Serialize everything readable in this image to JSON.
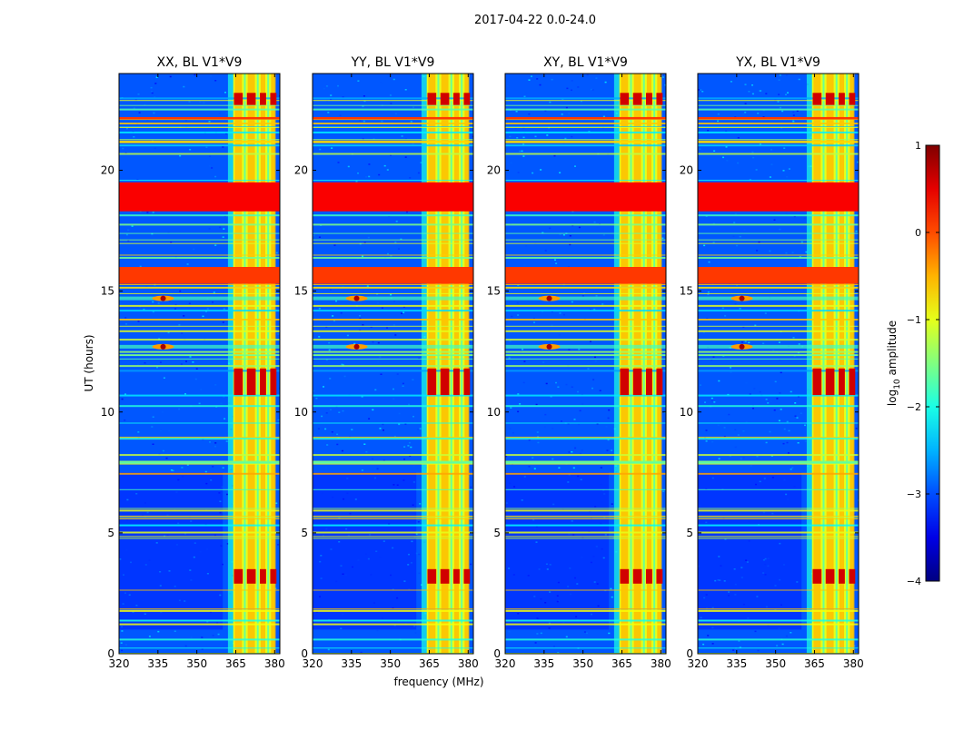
{
  "chart_data": {
    "type": "heatmap",
    "suptitle": "2017-04-22 0.0-24.0",
    "xlabel": "frequency (MHz)",
    "ylabel": "UT (hours)",
    "xlim": [
      320,
      382
    ],
    "ylim": [
      0,
      24
    ],
    "xticks": [
      320,
      335,
      350,
      365,
      380
    ],
    "yticks": [
      0,
      5,
      10,
      15,
      20
    ],
    "colormap": "jet",
    "colorbar": {
      "label": "log",
      "label_subscript": "10",
      "label_suffix": " amplitude",
      "range": [
        -4,
        1
      ],
      "ticks": [
        -4,
        -3,
        -2,
        -1,
        0,
        1
      ],
      "tick_labels": [
        "−4",
        "−3",
        "−2",
        "−1",
        "0",
        "1"
      ]
    },
    "panels": [
      {
        "title": "XX, BL V1*V9"
      },
      {
        "title": "YY, BL V1*V9"
      },
      {
        "title": "XY, BL V1*V9"
      },
      {
        "title": "YX, BL V1*V9"
      }
    ],
    "features": {
      "rfi_band_mhz": [
        364,
        380
      ],
      "rfi_subbands_mhz": [
        [
          364,
          368
        ],
        [
          369,
          373
        ],
        [
          374,
          377
        ],
        [
          378,
          381
        ]
      ],
      "strong_time_bands_ut": [
        [
          18.3,
          19.5
        ],
        [
          15.3,
          16.0
        ],
        [
          22.1,
          22.2
        ]
      ],
      "strong_band_only_ut": [
        [
          10.7,
          11.8
        ],
        [
          2.9,
          3.5
        ],
        [
          22.7,
          23.2
        ]
      ],
      "sparkle_events_ut": [
        12.7,
        14.7
      ]
    }
  }
}
